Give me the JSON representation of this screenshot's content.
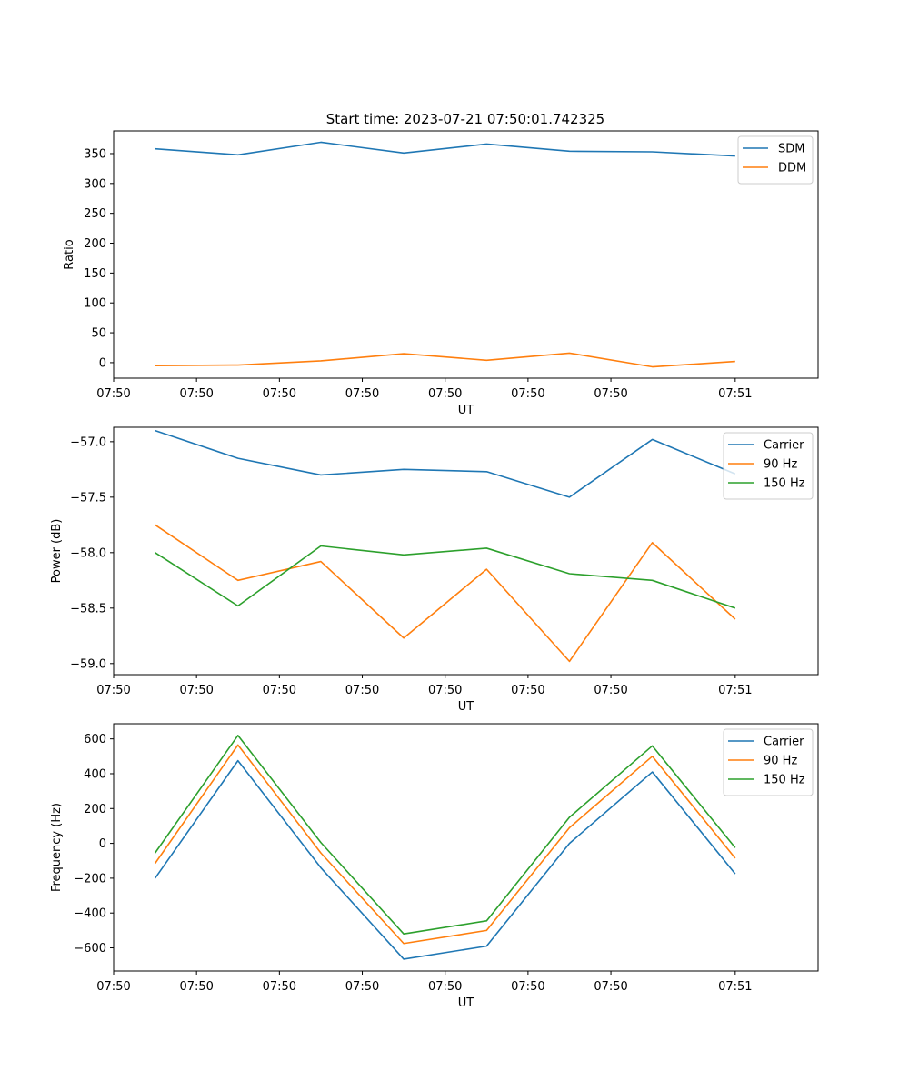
{
  "figure_title": "Start time: 2023-07-21 07:50:01.742325",
  "colors": {
    "blue": "#1f77b4",
    "orange": "#ff7f0e",
    "green": "#2ca02c"
  },
  "x_tick_labels": [
    "07:50",
    "07:50",
    "07:50",
    "07:50",
    "07:50",
    "07:50",
    "07:50",
    "07:51"
  ],
  "chart_data": [
    {
      "type": "line",
      "title": "Start time: 2023-07-21 07:50:01.742325",
      "xlabel": "UT",
      "ylabel": "Ratio",
      "x_index": [
        0,
        1,
        2,
        3,
        4,
        5,
        6,
        7
      ],
      "xlim": [
        -0.5,
        8.0
      ],
      "ylim": [
        -26,
        388
      ],
      "yticks": [
        0,
        50,
        100,
        150,
        200,
        250,
        300,
        350
      ],
      "xtick_positions": [
        -0.5,
        0.5,
        1.5,
        2.5,
        3.5,
        4.5,
        5.5,
        7.0
      ],
      "x_tick_labels": [
        "07:50",
        "07:50",
        "07:50",
        "07:50",
        "07:50",
        "07:50",
        "07:50",
        "07:51"
      ],
      "legend": "top-right",
      "series": [
        {
          "name": "SDM",
          "color": "#1f77b4",
          "values": [
            358,
            348,
            369,
            351,
            366,
            354,
            353,
            346
          ]
        },
        {
          "name": "DDM",
          "color": "#ff7f0e",
          "values": [
            -5,
            -4,
            3,
            15,
            4,
            16,
            -7,
            2
          ]
        }
      ]
    },
    {
      "type": "line",
      "title": "",
      "xlabel": "UT",
      "ylabel": "Power (dB)",
      "x_index": [
        0,
        1,
        2,
        3,
        4,
        5,
        6,
        7
      ],
      "xlim": [
        -0.5,
        8.0
      ],
      "ylim": [
        -59.1,
        -56.87
      ],
      "yticks": [
        -59.0,
        -58.5,
        -58.0,
        -57.5,
        -57.0
      ],
      "ytick_labels": [
        "−59.0",
        "−58.5",
        "−58.0",
        "−57.5",
        "−57.0"
      ],
      "xtick_positions": [
        -0.5,
        0.5,
        1.5,
        2.5,
        3.5,
        4.5,
        5.5,
        7.0
      ],
      "x_tick_labels": [
        "07:50",
        "07:50",
        "07:50",
        "07:50",
        "07:50",
        "07:50",
        "07:50",
        "07:51"
      ],
      "legend": "top-right",
      "series": [
        {
          "name": "Carrier",
          "color": "#1f77b4",
          "values": [
            -56.9,
            -57.15,
            -57.3,
            -57.25,
            -57.27,
            -57.5,
            -56.98,
            -57.29
          ]
        },
        {
          "name": "90 Hz",
          "color": "#ff7f0e",
          "values": [
            -57.75,
            -58.25,
            -58.08,
            -58.77,
            -58.15,
            -58.98,
            -57.91,
            -58.6
          ]
        },
        {
          "name": "150 Hz",
          "color": "#2ca02c",
          "values": [
            -58.0,
            -58.48,
            -57.94,
            -58.02,
            -57.96,
            -58.19,
            -58.25,
            -58.5
          ]
        }
      ]
    },
    {
      "type": "line",
      "title": "",
      "xlabel": "UT",
      "ylabel": "Frequency (Hz)",
      "x_index": [
        0,
        1,
        2,
        3,
        4,
        5,
        6,
        7
      ],
      "xlim": [
        -0.5,
        8.0
      ],
      "ylim": [
        -733,
        687
      ],
      "yticks": [
        -600,
        -400,
        -200,
        0,
        200,
        400,
        600
      ],
      "ytick_labels": [
        "−600",
        "−400",
        "−200",
        "0",
        "200",
        "400",
        "600"
      ],
      "xtick_positions": [
        -0.5,
        0.5,
        1.5,
        2.5,
        3.5,
        4.5,
        5.5,
        7.0
      ],
      "x_tick_labels": [
        "07:50",
        "07:50",
        "07:50",
        "07:50",
        "07:50",
        "07:50",
        "07:50",
        "07:51"
      ],
      "legend": "top-right",
      "series": [
        {
          "name": "Carrier",
          "color": "#1f77b4",
          "values": [
            -200,
            475,
            -140,
            -665,
            -590,
            0,
            410,
            -175
          ]
        },
        {
          "name": "90 Hz",
          "color": "#ff7f0e",
          "values": [
            -115,
            565,
            -55,
            -575,
            -500,
            90,
            500,
            -85
          ]
        },
        {
          "name": "150 Hz",
          "color": "#2ca02c",
          "values": [
            -55,
            620,
            5,
            -520,
            -445,
            150,
            560,
            -25
          ]
        }
      ]
    }
  ]
}
